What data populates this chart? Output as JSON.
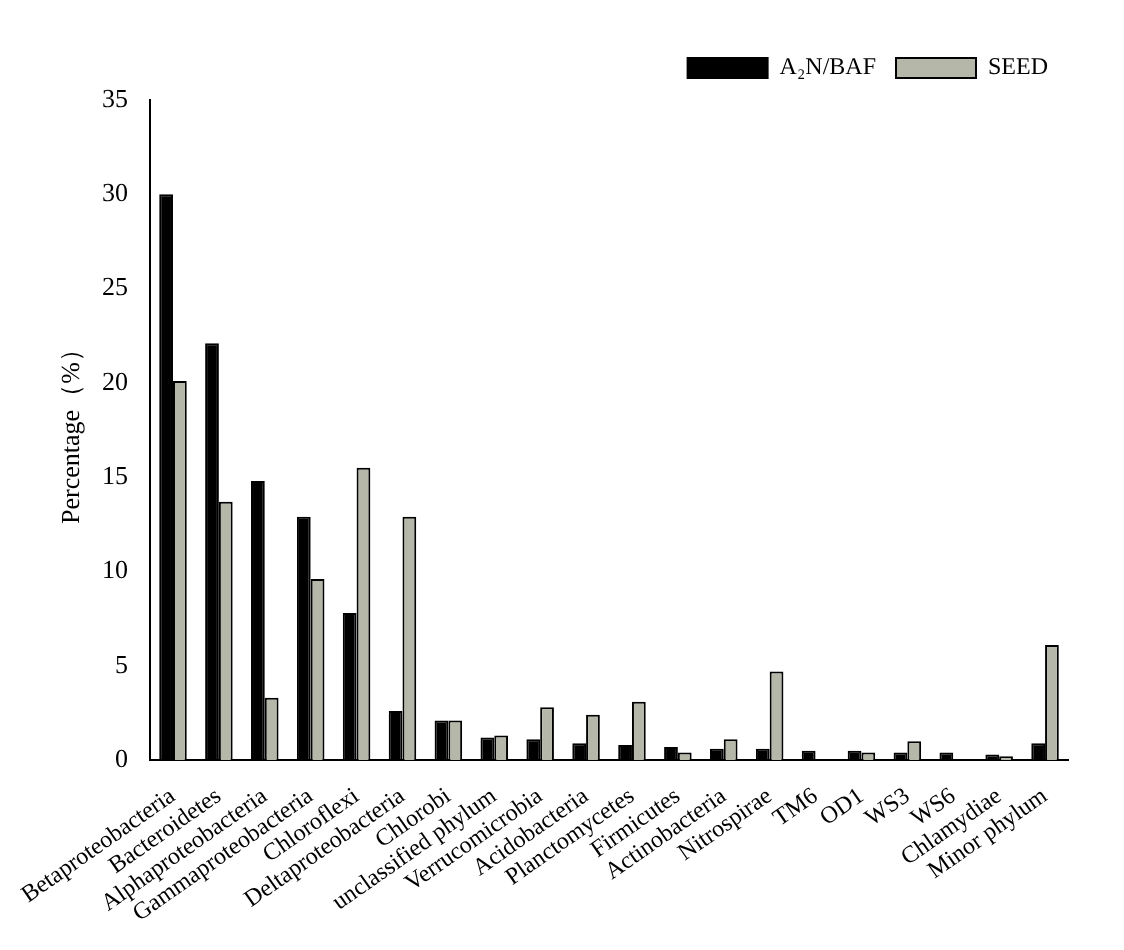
{
  "chart_data": {
    "type": "bar",
    "ylabel": "Percentage（%）",
    "categories": [
      "Betaproteobacteria",
      "Bacteroidetes",
      "Alphaproteobacteria",
      "Gammaproteobacteria",
      "Chloroflexi",
      "Deltaproteobacteria",
      "Chlorobi",
      "unclassified phylum",
      "Verrucomicrobia",
      "Acidobacteria",
      "Planctomycetes",
      "Firmicutes",
      "Actinobacteria",
      "Nitrospirae",
      "TM6",
      "OD1",
      "WS3",
      "WS6",
      "Chlamydiae",
      "Minor phylum"
    ],
    "series": [
      {
        "name": "A₂N/BAF",
        "color": "#000000",
        "values": [
          30,
          22.1,
          14.8,
          12.9,
          7.8,
          2.6,
          2.1,
          1.2,
          1.1,
          0.9,
          0.8,
          0.7,
          0.6,
          0.6,
          0.5,
          0.5,
          0.4,
          0.4,
          0.3,
          0.9
        ]
      },
      {
        "name": "SEED",
        "color": "#b5b8a8",
        "values": [
          20.1,
          13.7,
          3.3,
          9.6,
          15.5,
          12.9,
          2.1,
          1.3,
          2.8,
          2.4,
          3.1,
          0.4,
          1.1,
          4.7,
          0,
          0.4,
          1.0,
          0,
          0.2,
          6.1
        ]
      }
    ],
    "ylim": [
      0,
      35
    ],
    "yticks": [
      0,
      5,
      10,
      15,
      20,
      25,
      30,
      35
    ],
    "grid": false,
    "legend": "top right"
  }
}
